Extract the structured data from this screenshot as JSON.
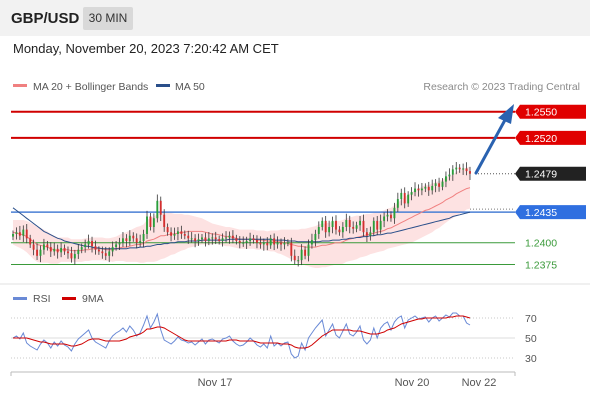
{
  "header": {
    "symbol": "GBP/USD",
    "timeframe": "30 MIN",
    "timestamp": "Monday, November 20, 2023 7:20:42 AM CET"
  },
  "legend": {
    "items": [
      {
        "label": "MA 20 + Bollinger Bands",
        "color": "#f08080"
      },
      {
        "label": "MA 50",
        "color": "#2a4f8a"
      }
    ],
    "credit": "Research © 2023 Trading Central"
  },
  "colors": {
    "up": "#2a9d3a",
    "down": "#d32f2f",
    "resistance": "#d00000",
    "support": "#4a7fd4",
    "weak_support": "#3a9a3a",
    "ma20": "#f08080",
    "ma50": "#2a4f8a",
    "band_fill": "#fde2e2",
    "rsi": "#6a8ad6",
    "rsi_ma": "#d00000",
    "arrow": "#2a62b0",
    "last_price": "#222222"
  },
  "chart_data": [
    {
      "type": "candlestick",
      "panel": "price",
      "ylim": [
        1.2355,
        1.2568
      ],
      "x_ticks": [
        "Nov 17",
        "Nov 20",
        "Nov 22"
      ],
      "levels": [
        {
          "value": 1.255,
          "label": "1.2550",
          "kind": "resistance"
        },
        {
          "value": 1.252,
          "label": "1.2520",
          "kind": "resistance"
        },
        {
          "value": 1.2479,
          "label": "1.2479",
          "kind": "last"
        },
        {
          "value": 1.2435,
          "label": "1.2435",
          "kind": "support"
        },
        {
          "value": 1.24,
          "label": "1.2400",
          "kind": "weak"
        },
        {
          "value": 1.2375,
          "label": "1.2375",
          "kind": "weak"
        }
      ],
      "close": [
        1.241,
        1.2412,
        1.2408,
        1.2415,
        1.2405,
        1.2398,
        1.2392,
        1.2385,
        1.2392,
        1.2398,
        1.2395,
        1.239,
        1.2393,
        1.2389,
        1.2394,
        1.239,
        1.2388,
        1.2382,
        1.2387,
        1.2392,
        1.2395,
        1.2398,
        1.2402,
        1.2396,
        1.2392,
        1.239,
        1.2388,
        1.2385,
        1.239,
        1.2395,
        1.2398,
        1.24,
        1.2405,
        1.2402,
        1.2408,
        1.2405,
        1.24,
        1.2402,
        1.241,
        1.243,
        1.2418,
        1.2428,
        1.2448,
        1.2432,
        1.2418,
        1.2412,
        1.2408,
        1.241,
        1.2413,
        1.241,
        1.2408,
        1.2405,
        1.2405,
        1.2402,
        1.2404,
        1.2406,
        1.2402,
        1.2405,
        1.2406,
        1.2404,
        1.2402,
        1.2405,
        1.2406,
        1.2408,
        1.2405,
        1.2402,
        1.24,
        1.24,
        1.2402,
        1.2405,
        1.2403,
        1.24,
        1.2398,
        1.24,
        1.2397,
        1.2405,
        1.2398,
        1.24,
        1.2398,
        1.24,
        1.24,
        1.2385,
        1.238,
        1.238,
        1.2392,
        1.2385,
        1.2398,
        1.2403,
        1.241,
        1.2418,
        1.2425,
        1.2412,
        1.2418,
        1.2425,
        1.2415,
        1.2412,
        1.2418,
        1.2426,
        1.2418,
        1.2416,
        1.242,
        1.2425,
        1.2412,
        1.2408,
        1.2412,
        1.2425,
        1.2415,
        1.2425,
        1.243,
        1.2432,
        1.2428,
        1.244,
        1.245,
        1.2457,
        1.2445,
        1.2455,
        1.2458,
        1.2462,
        1.246,
        1.2462,
        1.2464,
        1.246,
        1.2465,
        1.2468,
        1.2464,
        1.247,
        1.2476,
        1.2478,
        1.2484,
        1.2486,
        1.2484,
        1.2485,
        1.2482,
        1.2479
      ],
      "ma20": [
        1.2412,
        1.2411,
        1.241,
        1.2409,
        1.2407,
        1.2404,
        1.2401,
        1.2398,
        1.2397,
        1.2396,
        1.2395,
        1.2393,
        1.2392,
        1.2391,
        1.2392,
        1.2392,
        1.2392,
        1.2391,
        1.2391,
        1.2391,
        1.2391,
        1.2392,
        1.2392,
        1.2393,
        1.2393,
        1.2393,
        1.2393,
        1.2392,
        1.2392,
        1.2392,
        1.2393,
        1.2394,
        1.2395,
        1.2395,
        1.2396,
        1.2397,
        1.2398,
        1.2398,
        1.2399,
        1.2402,
        1.2403,
        1.2404,
        1.2406,
        1.2408,
        1.2408,
        1.2409,
        1.241,
        1.241,
        1.2411,
        1.2412,
        1.2412,
        1.2413,
        1.2413,
        1.2413,
        1.2413,
        1.2413,
        1.2412,
        1.2411,
        1.241,
        1.241,
        1.2409,
        1.2408,
        1.2407,
        1.2407,
        1.2406,
        1.2405,
        1.2404,
        1.2404,
        1.2404,
        1.2404,
        1.2404,
        1.2403,
        1.2403,
        1.2403,
        1.2402,
        1.2402,
        1.2402,
        1.2401,
        1.2401,
        1.24,
        1.2399,
        1.2398,
        1.2397,
        1.2396,
        1.2396,
        1.2395,
        1.2395,
        1.2395,
        1.2395,
        1.2396,
        1.2397,
        1.2397,
        1.2398,
        1.2399,
        1.24,
        1.24,
        1.2401,
        1.2403,
        1.2404,
        1.2405,
        1.2406,
        1.2407,
        1.2408,
        1.2409,
        1.241,
        1.2411,
        1.2412,
        1.2413,
        1.2414,
        1.2416,
        1.2417,
        1.2419,
        1.2421,
        1.2423,
        1.2425,
        1.2427,
        1.2429,
        1.2431,
        1.2433,
        1.2435,
        1.2437,
        1.2438,
        1.244,
        1.2442,
        1.2444,
        1.2446,
        1.2449,
        1.2451,
        1.2453,
        1.2456,
        1.2458,
        1.246,
        1.2462,
        1.2463
      ],
      "ma50": [
        1.244,
        1.2437,
        1.2434,
        1.2431,
        1.2428,
        1.2425,
        1.2422,
        1.2419,
        1.2416,
        1.2413,
        1.2411,
        1.2409,
        1.2407,
        1.2405,
        1.2404,
        1.2402,
        1.2401,
        1.24,
        1.2399,
        1.2398,
        1.2397,
        1.2396,
        1.2396,
        1.2395,
        1.2394,
        1.2394,
        1.2393,
        1.2393,
        1.2393,
        1.2393,
        1.2393,
        1.2393,
        1.2393,
        1.2393,
        1.2394,
        1.2394,
        1.2394,
        1.2395,
        1.2395,
        1.2396,
        1.2396,
        1.2397,
        1.2398,
        1.2398,
        1.2399,
        1.2399,
        1.24,
        1.24,
        1.2401,
        1.2401,
        1.2401,
        1.2402,
        1.2402,
        1.2402,
        1.2402,
        1.2403,
        1.2403,
        1.2403,
        1.2403,
        1.2403,
        1.2403,
        1.2403,
        1.2403,
        1.2404,
        1.2404,
        1.2404,
        1.2404,
        1.2404,
        1.2404,
        1.2404,
        1.2404,
        1.2404,
        1.2404,
        1.2404,
        1.2404,
        1.2404,
        1.2403,
        1.2403,
        1.2403,
        1.2403,
        1.2402,
        1.2402,
        1.2402,
        1.2401,
        1.2401,
        1.2401,
        1.2401,
        1.2401,
        1.2401,
        1.2401,
        1.2402,
        1.2402,
        1.2402,
        1.2403,
        1.2403,
        1.2403,
        1.2404,
        1.2404,
        1.2405,
        1.2405,
        1.2406,
        1.2406,
        1.2407,
        1.2407,
        1.2408,
        1.2408,
        1.2409,
        1.2409,
        1.241,
        1.2411,
        1.2411,
        1.2412,
        1.2413,
        1.2414,
        1.2415,
        1.2416,
        1.2417,
        1.2418,
        1.2419,
        1.242,
        1.2421,
        1.2422,
        1.2423,
        1.2424,
        1.2425,
        1.2426,
        1.2427,
        1.2428,
        1.243,
        1.2431,
        1.2432,
        1.2433,
        1.2434,
        1.2435
      ],
      "bb_width": [
        0.0014,
        0.0015,
        0.0016,
        0.0017,
        0.0018,
        0.0019,
        0.002,
        0.002,
        0.002,
        0.0019,
        0.0018,
        0.0017,
        0.0016,
        0.0015,
        0.0014,
        0.0014,
        0.0014,
        0.0013,
        0.0013,
        0.0013,
        0.0013,
        0.0013,
        0.0013,
        0.0013,
        0.0013,
        0.0013,
        0.0013,
        0.0013,
        0.0013,
        0.0014,
        0.0014,
        0.0015,
        0.0016,
        0.0017,
        0.0018,
        0.0019,
        0.002,
        0.0021,
        0.0022,
        0.0024,
        0.0025,
        0.0026,
        0.0027,
        0.0027,
        0.0026,
        0.0025,
        0.0024,
        0.0023,
        0.0022,
        0.0021,
        0.002,
        0.0019,
        0.0018,
        0.0017,
        0.0016,
        0.0015,
        0.0014,
        0.0013,
        0.0012,
        0.0011,
        0.0011,
        0.0011,
        0.0011,
        0.0011,
        0.0011,
        0.0011,
        0.0011,
        0.0011,
        0.0011,
        0.0011,
        0.0011,
        0.0011,
        0.0011,
        0.0011,
        0.0011,
        0.0012,
        0.0012,
        0.0013,
        0.0014,
        0.0015,
        0.0016,
        0.0017,
        0.0018,
        0.0019,
        0.002,
        0.0021,
        0.0022,
        0.0023,
        0.0024,
        0.0025,
        0.0025,
        0.0025,
        0.0025,
        0.0025,
        0.0025,
        0.0025,
        0.0025,
        0.0025,
        0.0025,
        0.0025,
        0.0025,
        0.0024,
        0.0024,
        0.0024,
        0.0023,
        0.0023,
        0.0023,
        0.0023,
        0.0023,
        0.0023,
        0.0023,
        0.0024,
        0.0025,
        0.0026,
        0.0027,
        0.0028,
        0.0029,
        0.0029,
        0.0029,
        0.0029,
        0.0029,
        0.0028,
        0.0028,
        0.0027,
        0.0027,
        0.0026,
        0.0026,
        0.0025,
        0.0025,
        0.0025,
        0.0025,
        0.0025,
        0.0024,
        0.0024
      ]
    },
    {
      "type": "line",
      "panel": "rsi",
      "legend": [
        "RSI",
        "9MA"
      ],
      "ylim": [
        18,
        78
      ],
      "y_ticks": [
        70,
        50,
        30
      ],
      "rsi": [
        50,
        52,
        49,
        55,
        45,
        42,
        40,
        38,
        44,
        48,
        45,
        40,
        46,
        42,
        47,
        43,
        41,
        37,
        44,
        49,
        52,
        55,
        58,
        50,
        46,
        44,
        42,
        40,
        47,
        52,
        55,
        57,
        60,
        56,
        62,
        58,
        52,
        55,
        63,
        72,
        60,
        66,
        74,
        58,
        48,
        46,
        44,
        47,
        51,
        48,
        47,
        45,
        46,
        43,
        46,
        49,
        44,
        48,
        49,
        47,
        45,
        49,
        50,
        52,
        47,
        44,
        42,
        43,
        46,
        50,
        47,
        43,
        41,
        44,
        40,
        52,
        42,
        45,
        42,
        45,
        46,
        34,
        30,
        32,
        45,
        38,
        50,
        55,
        60,
        64,
        68,
        52,
        58,
        64,
        53,
        50,
        57,
        64,
        54,
        52,
        56,
        62,
        48,
        44,
        48,
        60,
        50,
        60,
        64,
        66,
        58,
        66,
        70,
        72,
        60,
        68,
        70,
        72,
        69,
        70,
        71,
        66,
        70,
        72,
        67,
        70,
        73,
        71,
        75,
        75,
        72,
        72,
        65,
        63
      ],
      "ma9": [
        50,
        50,
        50,
        50,
        50,
        49,
        48,
        47,
        46,
        46,
        45,
        44,
        44,
        44,
        44,
        44,
        43,
        42,
        42,
        43,
        44,
        46,
        48,
        49,
        49,
        49,
        48,
        47,
        47,
        47,
        47,
        47,
        48,
        49,
        51,
        52,
        53,
        54,
        56,
        59,
        59,
        60,
        61,
        61,
        60,
        58,
        56,
        54,
        52,
        50,
        48,
        47,
        47,
        47,
        47,
        47,
        47,
        47,
        47,
        47,
        47,
        47,
        47,
        48,
        48,
        48,
        47,
        47,
        47,
        47,
        47,
        46,
        45,
        45,
        45,
        45,
        45,
        45,
        44,
        44,
        44,
        43,
        41,
        40,
        40,
        40,
        41,
        43,
        46,
        49,
        52,
        54,
        56,
        58,
        58,
        58,
        58,
        58,
        58,
        57,
        57,
        57,
        56,
        55,
        54,
        54,
        54,
        55,
        56,
        58,
        59,
        60,
        62,
        64,
        65,
        66,
        67,
        68,
        69,
        69,
        70,
        70,
        70,
        70,
        70,
        70,
        70,
        71,
        71,
        72,
        72,
        72,
        71,
        70
      ]
    }
  ]
}
